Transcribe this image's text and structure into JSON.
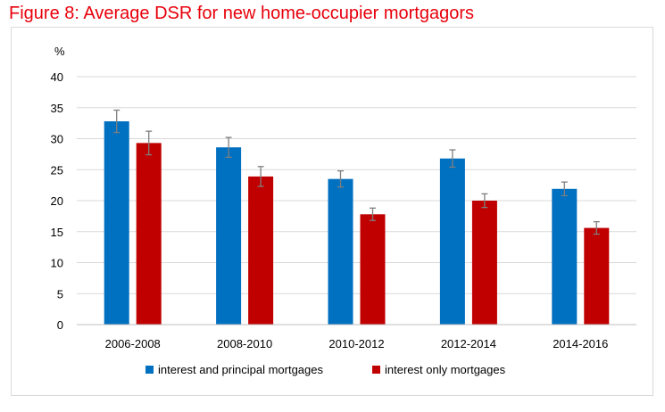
{
  "title": "Figure 8: Average DSR for new home-occupier mortgagors",
  "chart_data": {
    "type": "bar",
    "unit_label": "%",
    "categories": [
      "2006-2008",
      "2008-2010",
      "2010-2012",
      "2012-2014",
      "2014-2016"
    ],
    "series": [
      {
        "name": "interest and principal mortgages",
        "color": "#0070c0",
        "values": [
          32.8,
          28.6,
          23.5,
          26.8,
          21.9
        ],
        "error": [
          1.8,
          1.6,
          1.3,
          1.4,
          1.1
        ]
      },
      {
        "name": "interest only mortgages",
        "color": "#c00000",
        "values": [
          29.3,
          23.9,
          17.8,
          20.0,
          15.6
        ],
        "error": [
          1.9,
          1.6,
          1.0,
          1.1,
          1.0
        ]
      }
    ],
    "ylim": [
      0,
      40
    ],
    "yticks": [
      0,
      5,
      10,
      15,
      20,
      25,
      30,
      35,
      40
    ],
    "grid": true,
    "legend_position": "bottom"
  }
}
